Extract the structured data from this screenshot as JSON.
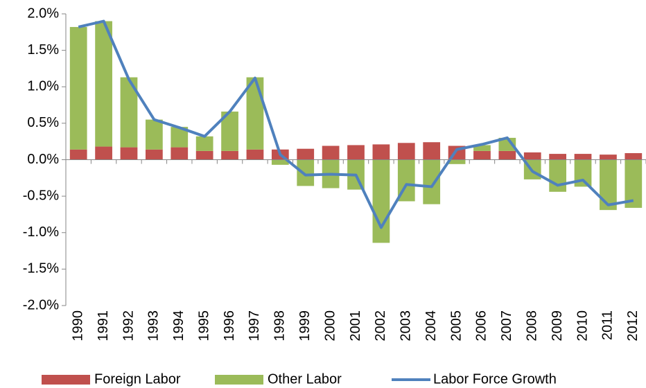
{
  "chart_data": {
    "type": "bar",
    "categories": [
      "1990",
      "1991",
      "1992",
      "1993",
      "1994",
      "1995",
      "1996",
      "1997",
      "1998",
      "1999",
      "2000",
      "2001",
      "2002",
      "2003",
      "2004",
      "2005",
      "2006",
      "2007",
      "2008",
      "2009",
      "2010",
      "2011",
      "2012"
    ],
    "series": [
      {
        "name": "Foreign Labor",
        "kind": "bar",
        "color": "#c0504d",
        "values": [
          0.14,
          0.18,
          0.17,
          0.14,
          0.17,
          0.12,
          0.12,
          0.14,
          0.14,
          0.15,
          0.19,
          0.2,
          0.21,
          0.23,
          0.24,
          0.19,
          0.12,
          0.12,
          0.1,
          0.08,
          0.08,
          0.07,
          0.09
        ]
      },
      {
        "name": "Other Labor",
        "kind": "bar",
        "color": "#9bbb59",
        "values": [
          1.68,
          1.72,
          0.96,
          0.41,
          0.28,
          0.2,
          0.54,
          0.99,
          -0.07,
          -0.36,
          -0.39,
          -0.41,
          -1.14,
          -0.57,
          -0.61,
          -0.06,
          0.08,
          0.18,
          -0.27,
          -0.44,
          -0.37,
          -0.69,
          -0.66
        ]
      },
      {
        "name": "Labor Force Growth",
        "kind": "line",
        "color": "#4f81bd",
        "values": [
          1.82,
          1.9,
          1.1,
          0.55,
          0.44,
          0.32,
          0.66,
          1.12,
          0.07,
          -0.21,
          -0.2,
          -0.21,
          -0.93,
          -0.34,
          -0.37,
          0.14,
          0.21,
          0.3,
          -0.16,
          -0.35,
          -0.28,
          -0.62,
          -0.56
        ]
      }
    ],
    "ylim": [
      -2,
      2
    ],
    "yticks": [
      {
        "value": -2,
        "label": "-2.0%"
      },
      {
        "value": -1.5,
        "label": "-1.5%"
      },
      {
        "value": -1,
        "label": "-1.0%"
      },
      {
        "value": -0.5,
        "label": "-0.5%"
      },
      {
        "value": 0,
        "label": "0.0%"
      },
      {
        "value": 0.5,
        "label": "0.5%"
      },
      {
        "value": 1,
        "label": "1.0%"
      },
      {
        "value": 1.5,
        "label": "1.5%"
      },
      {
        "value": 2,
        "label": "2.0%"
      }
    ],
    "grid": false,
    "legend": "bottom"
  }
}
